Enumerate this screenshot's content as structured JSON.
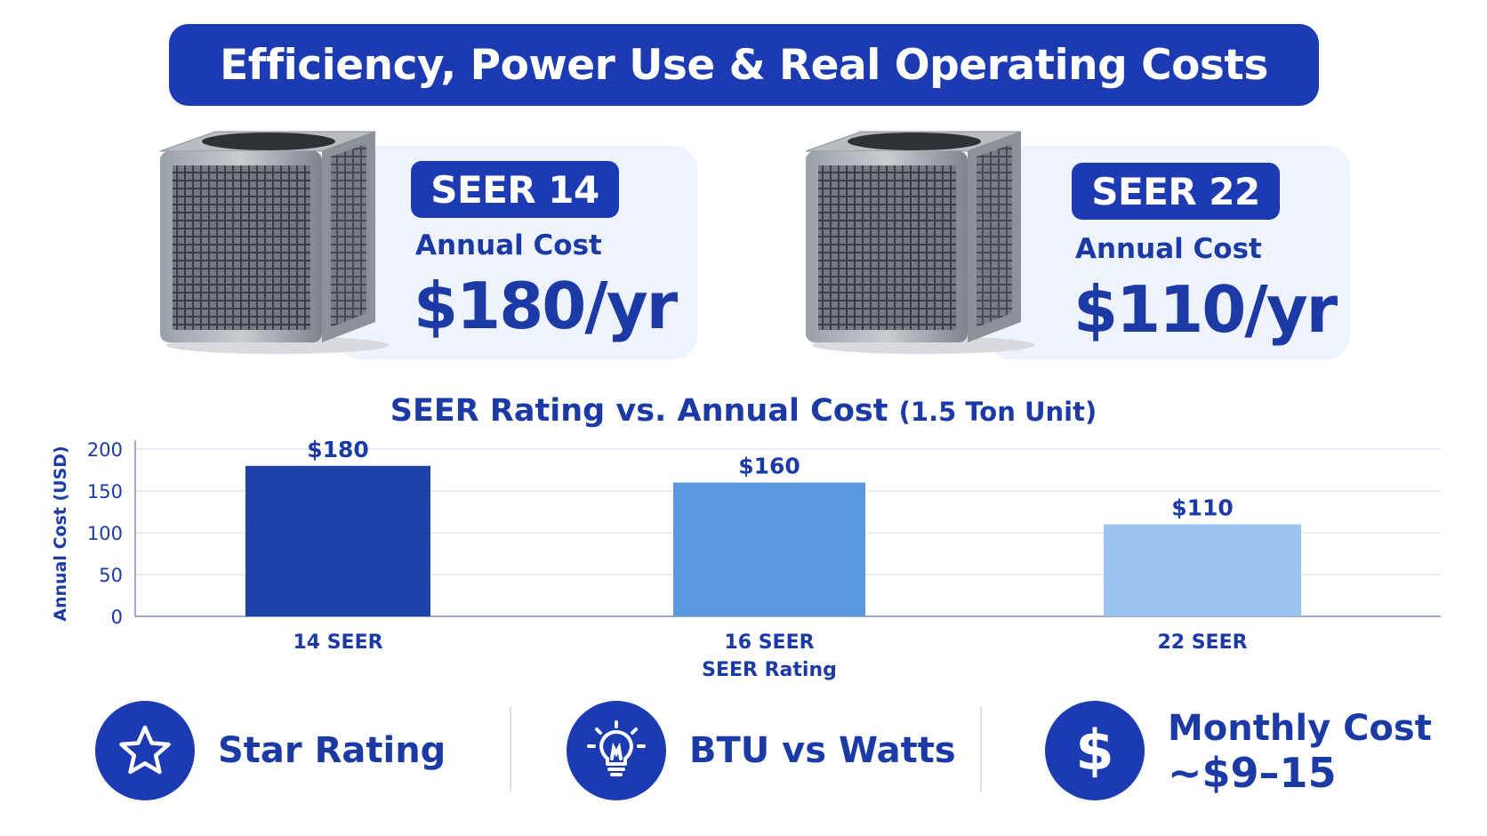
{
  "header": {
    "title": "Efficiency, Power Use & Real Operating Costs"
  },
  "comparison": [
    {
      "badge": "SEER 14",
      "cost_label": "Annual Cost",
      "cost_value": "$180/yr"
    },
    {
      "badge": "SEER 22",
      "cost_label": "Annual Cost",
      "cost_value": "$110/yr"
    }
  ],
  "chart_title": {
    "main": "SEER Rating vs. Annual Cost",
    "sub": "(1.5 Ton Unit)"
  },
  "chart_data": {
    "type": "bar",
    "categories": [
      "14 SEER",
      "16 SEER",
      "22 SEER"
    ],
    "values": [
      180,
      160,
      110
    ],
    "data_labels": [
      "$180",
      "$160",
      "$110"
    ],
    "xlabel": "SEER Rating",
    "ylabel": "Annual Cost (USD)",
    "ylim": [
      0,
      200
    ],
    "yticks": [
      0,
      50,
      100,
      150,
      200
    ],
    "grid": true,
    "colors": [
      "#1d43a8",
      "#5a98e0",
      "#9bc3f1"
    ]
  },
  "features": [
    {
      "icon": "star-icon",
      "label": "Star Rating"
    },
    {
      "icon": "lightbulb-icon",
      "label": "BTU vs Watts"
    },
    {
      "icon": "dollar-icon",
      "label_line1": "Monthly Cost",
      "label_line2": "~$9–15"
    }
  ],
  "colors": {
    "primary": "#1c3bb3",
    "text": "#1b3aa6",
    "card_bg": "#eef3fd"
  }
}
